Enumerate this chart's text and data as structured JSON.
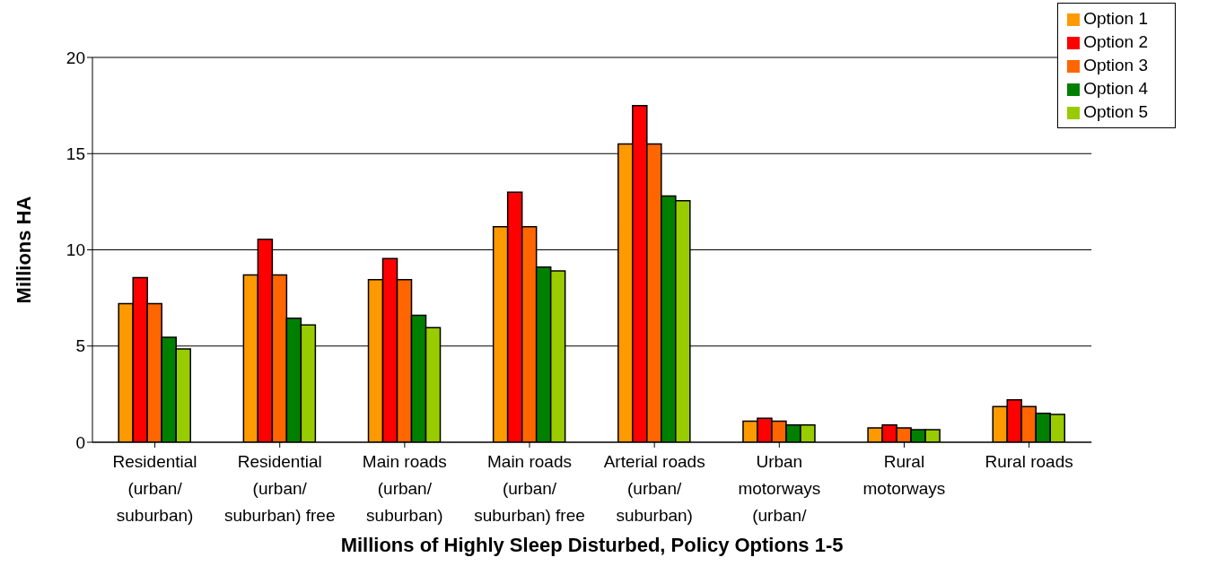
{
  "chart_data": {
    "type": "bar",
    "xlabel": "Millions of Highly Sleep Disturbed, Policy Options 1-5",
    "ylabel": "Millions HA",
    "categories": [
      "Residential (urban/ suburban)",
      "Residential (urban/ suburban) free",
      "Main roads (urban/ suburban)",
      "Main roads (urban/ suburban) free",
      "Arterial roads (urban/ suburban)",
      "Urban motorways (urban/",
      "Rural motorways",
      "Rural roads"
    ],
    "series": [
      {
        "name": "Option 1",
        "color": "#ff9900",
        "values": [
          7.2,
          8.7,
          8.45,
          11.2,
          15.5,
          1.1,
          0.75,
          1.85
        ]
      },
      {
        "name": "Option 2",
        "color": "#ff0000",
        "values": [
          8.55,
          10.55,
          9.55,
          13.0,
          17.5,
          1.25,
          0.9,
          2.2
        ]
      },
      {
        "name": "Option 3",
        "color": "#ff6600",
        "values": [
          7.2,
          8.7,
          8.45,
          11.2,
          15.5,
          1.1,
          0.75,
          1.85
        ]
      },
      {
        "name": "Option 4",
        "color": "#008000",
        "values": [
          5.45,
          6.45,
          6.6,
          9.1,
          12.8,
          0.9,
          0.65,
          1.5
        ]
      },
      {
        "name": "Option 5",
        "color": "#99cc00",
        "values": [
          4.85,
          6.1,
          5.95,
          8.9,
          12.55,
          0.9,
          0.65,
          1.45
        ]
      }
    ],
    "ylim": [
      0,
      20
    ],
    "yticks": [
      0,
      5,
      10,
      15,
      20
    ],
    "grid": "y",
    "legend": "top right"
  }
}
